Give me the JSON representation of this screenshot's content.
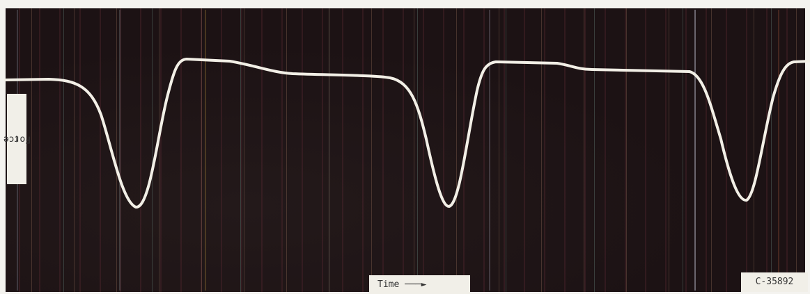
{
  "labels": {
    "y_axis": "Force",
    "x_axis": "Time",
    "figure_id": "C-35892"
  }
}
